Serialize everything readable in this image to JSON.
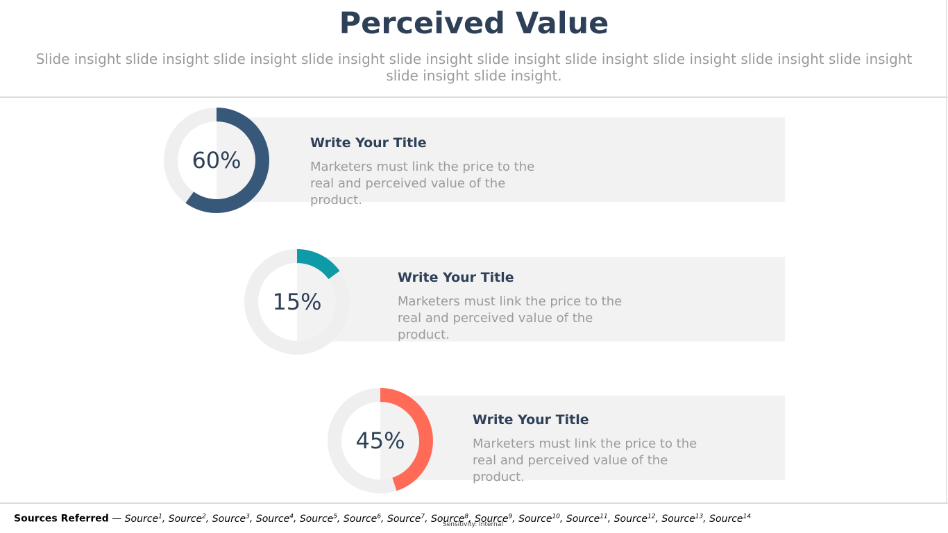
{
  "slide": {
    "title": "Perceived Value",
    "subtitle": "Slide insight slide insight slide insight slide insight slide insight slide insight slide insight slide insight slide insight slide insight slide insight slide insight."
  },
  "items": [
    {
      "percent_label": "60%",
      "value": 60,
      "color": "#38587a",
      "title": "Write Your Title",
      "description": "Marketers must link the price to the real and perceived value of the product."
    },
    {
      "percent_label": "15%",
      "value": 15,
      "color": "#0e9ba7",
      "title": "Write Your Title",
      "description": "Marketers must link the price to the real and perceived value of the product."
    },
    {
      "percent_label": "45%",
      "value": 45,
      "color": "#ff6b57",
      "title": "Write Your Title",
      "description": "Marketers must link the price to the real and perceived value of the product."
    }
  ],
  "colors": {
    "ring_track": "#efefef",
    "card_background": "#f2f2f2",
    "title_text": "#2e4057",
    "body_text": "#9a9a9a"
  },
  "footer": {
    "lead": "Sources Referred",
    "separator": " — ",
    "sources": [
      {
        "label": "Source",
        "sup": "1"
      },
      {
        "label": "Source",
        "sup": "2"
      },
      {
        "label": "Source",
        "sup": "3"
      },
      {
        "label": "Source",
        "sup": "4"
      },
      {
        "label": "Source",
        "sup": "5"
      },
      {
        "label": "Source",
        "sup": "6"
      },
      {
        "label": "Source",
        "sup": "7"
      },
      {
        "label": "Source",
        "sup": "8"
      },
      {
        "label": "Source",
        "sup": "9"
      },
      {
        "label": "Source",
        "sup": "10"
      },
      {
        "label": "Source",
        "sup": "11"
      },
      {
        "label": "Source",
        "sup": "12"
      },
      {
        "label": "Source",
        "sup": "13"
      },
      {
        "label": "Source",
        "sup": "14"
      }
    ],
    "sensitivity": "Sensitivity: Internal"
  }
}
